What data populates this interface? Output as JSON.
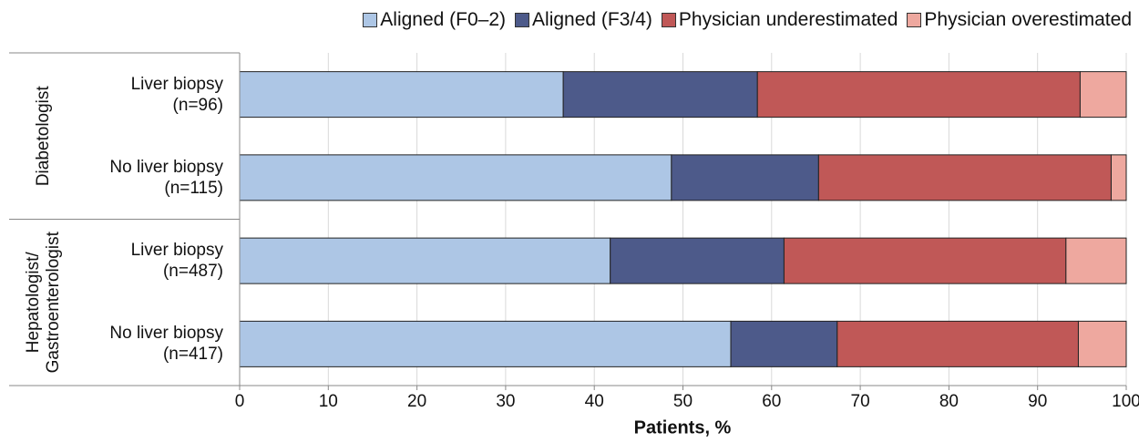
{
  "chart_data": {
    "type": "stacked-bar-horizontal",
    "x_label": "Patients, %",
    "categories": [
      "Liver biopsy (n=96)",
      "No liver biopsy (n=115)",
      "Liver biopsy (n=487)",
      "No liver biopsy (n=417)"
    ],
    "groups": [
      [
        "Diabetologist"
      ],
      [
        "Hepatologist/",
        "Gastroenterologist"
      ]
    ],
    "series": [
      {
        "name": "Aligned (F0–2)",
        "color": "#adc6e5",
        "values": [
          36.5,
          48.7,
          41.8,
          55.4
        ]
      },
      {
        "name": "Aligned (F3/4)",
        "color": "#4d5a8a",
        "values": [
          21.9,
          16.6,
          19.6,
          12.0
        ]
      },
      {
        "name": "Physician underestimated",
        "color": "#c05857",
        "values": [
          36.4,
          33.0,
          31.8,
          27.2
        ]
      },
      {
        "name": "Physician overestimated",
        "color": "#eea89f",
        "values": [
          5.2,
          1.7,
          6.8,
          5.4
        ]
      }
    ],
    "xlim": [
      0,
      100
    ],
    "xticks": [
      0,
      10,
      20,
      30,
      40,
      50,
      60,
      70,
      80,
      90,
      100
    ],
    "grid": true
  }
}
